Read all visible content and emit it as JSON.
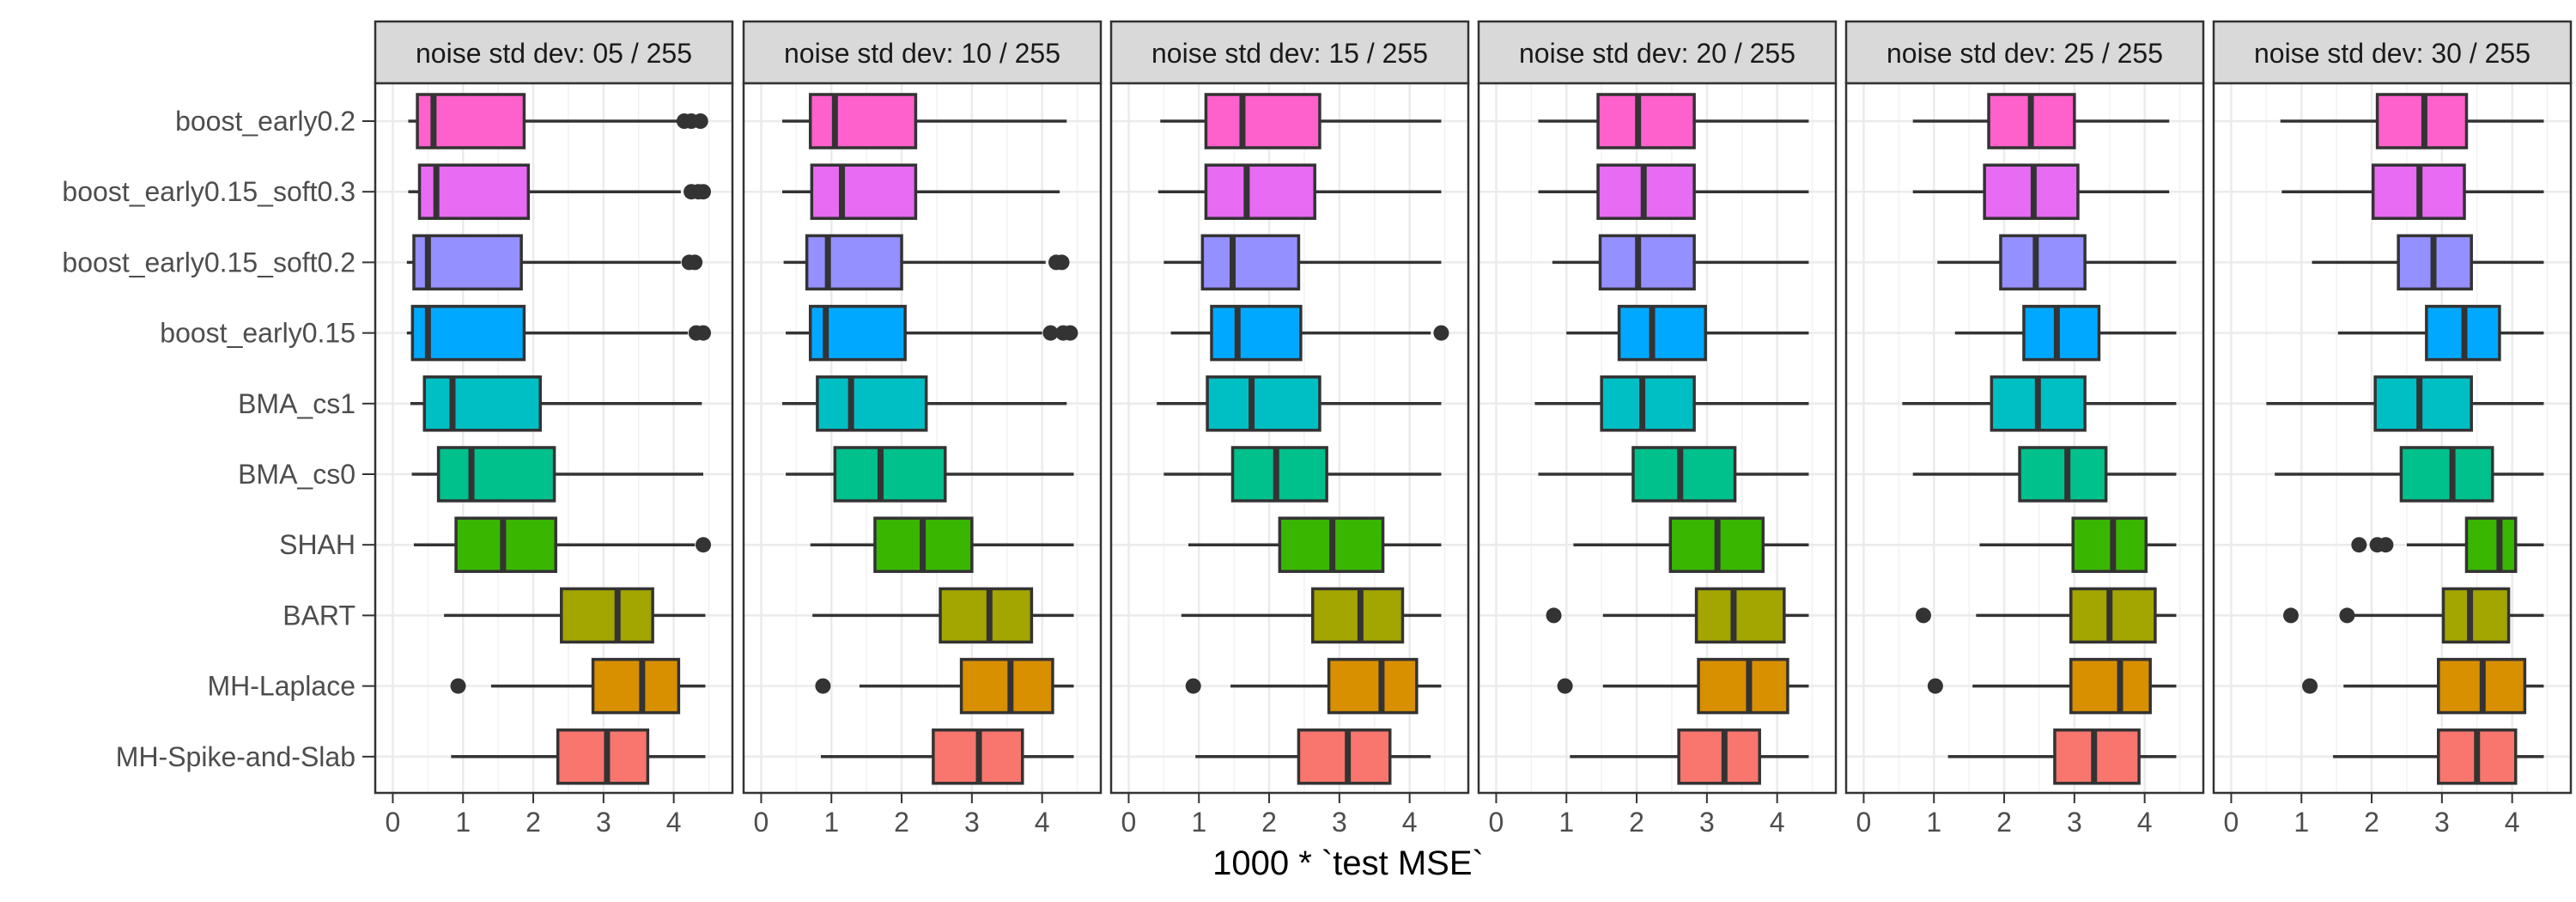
{
  "chart_data": {
    "type": "boxplot",
    "xlabel": "1000 * `test MSE`",
    "ylabel": "",
    "xlim": [
      -0.25,
      4.6
    ],
    "xticks": [
      0,
      1,
      2,
      3,
      4
    ],
    "categories": [
      "boost_early0.2",
      "boost_early0.15_soft0.3",
      "boost_early0.15_soft0.2",
      "boost_early0.15",
      "BMA_cs1",
      "BMA_cs0",
      "SHAH",
      "BART",
      "MH-Laplace",
      "MH-Spike-and-Slab"
    ],
    "colors": [
      "#ff61cc",
      "#e76bf3",
      "#9590ff",
      "#00a9ff",
      "#00bfc4",
      "#00c08b",
      "#39b600",
      "#a3a500",
      "#d89000",
      "#f8766d"
    ],
    "panels": [
      {
        "label": "noise std dev: 05 / 255",
        "boxes": [
          {
            "whisker_low": 0.22,
            "q1": 0.35,
            "median": 0.58,
            "q3": 1.87,
            "whisker_high": 4.05,
            "outliers": [
              4.15,
              4.25,
              4.38
            ]
          },
          {
            "whisker_low": 0.22,
            "q1": 0.38,
            "median": 0.62,
            "q3": 1.93,
            "whisker_high": 4.1,
            "outliers": [
              4.25,
              4.35,
              4.42
            ]
          },
          {
            "whisker_low": 0.2,
            "q1": 0.3,
            "median": 0.5,
            "q3": 1.83,
            "whisker_high": 4.1,
            "outliers": [
              4.22,
              4.3
            ]
          },
          {
            "whisker_low": 0.2,
            "q1": 0.28,
            "median": 0.5,
            "q3": 1.87,
            "whisker_high": 4.2,
            "outliers": [
              4.32,
              4.42
            ]
          },
          {
            "whisker_low": 0.25,
            "q1": 0.45,
            "median": 0.85,
            "q3": 2.1,
            "whisker_high": 4.4,
            "outliers": []
          },
          {
            "whisker_low": 0.27,
            "q1": 0.65,
            "median": 1.12,
            "q3": 2.3,
            "whisker_high": 4.42,
            "outliers": []
          },
          {
            "whisker_low": 0.3,
            "q1": 0.9,
            "median": 1.57,
            "q3": 2.32,
            "whisker_high": 4.3,
            "outliers": [
              4.42
            ]
          },
          {
            "whisker_low": 0.73,
            "q1": 2.4,
            "median": 3.2,
            "q3": 3.7,
            "whisker_high": 4.45,
            "outliers": []
          },
          {
            "whisker_low": 1.4,
            "q1": 2.85,
            "median": 3.55,
            "q3": 4.07,
            "whisker_high": 4.45,
            "outliers": [
              0.93
            ]
          },
          {
            "whisker_low": 0.83,
            "q1": 2.35,
            "median": 3.05,
            "q3": 3.63,
            "whisker_high": 4.45,
            "outliers": []
          }
        ]
      },
      {
        "label": "noise std dev: 10 / 255",
        "boxes": [
          {
            "whisker_low": 0.3,
            "q1": 0.7,
            "median": 1.05,
            "q3": 2.2,
            "whisker_high": 4.35,
            "outliers": []
          },
          {
            "whisker_low": 0.3,
            "q1": 0.72,
            "median": 1.15,
            "q3": 2.2,
            "whisker_high": 4.25,
            "outliers": []
          },
          {
            "whisker_low": 0.32,
            "q1": 0.65,
            "median": 0.95,
            "q3": 2.0,
            "whisker_high": 4.05,
            "outliers": [
              4.2,
              4.28
            ]
          },
          {
            "whisker_low": 0.35,
            "q1": 0.7,
            "median": 0.92,
            "q3": 2.05,
            "whisker_high": 4.0,
            "outliers": [
              4.12,
              4.3,
              4.4
            ]
          },
          {
            "whisker_low": 0.3,
            "q1": 0.8,
            "median": 1.28,
            "q3": 2.35,
            "whisker_high": 4.35,
            "outliers": []
          },
          {
            "whisker_low": 0.35,
            "q1": 1.05,
            "median": 1.7,
            "q3": 2.62,
            "whisker_high": 4.45,
            "outliers": []
          },
          {
            "whisker_low": 0.7,
            "q1": 1.62,
            "median": 2.3,
            "q3": 3.0,
            "whisker_high": 4.45,
            "outliers": []
          },
          {
            "whisker_low": 0.73,
            "q1": 2.55,
            "median": 3.25,
            "q3": 3.85,
            "whisker_high": 4.45,
            "outliers": []
          },
          {
            "whisker_low": 1.4,
            "q1": 2.85,
            "median": 3.55,
            "q3": 4.15,
            "whisker_high": 4.45,
            "outliers": [
              0.88
            ]
          },
          {
            "whisker_low": 0.85,
            "q1": 2.45,
            "median": 3.1,
            "q3": 3.72,
            "whisker_high": 4.45,
            "outliers": []
          }
        ]
      },
      {
        "label": "noise std dev: 15 / 255",
        "boxes": [
          {
            "whisker_low": 0.45,
            "q1": 1.1,
            "median": 1.62,
            "q3": 2.72,
            "whisker_high": 4.45,
            "outliers": []
          },
          {
            "whisker_low": 0.42,
            "q1": 1.1,
            "median": 1.68,
            "q3": 2.65,
            "whisker_high": 4.45,
            "outliers": []
          },
          {
            "whisker_low": 0.5,
            "q1": 1.05,
            "median": 1.48,
            "q3": 2.42,
            "whisker_high": 4.45,
            "outliers": []
          },
          {
            "whisker_low": 0.6,
            "q1": 1.18,
            "median": 1.55,
            "q3": 2.45,
            "whisker_high": 4.3,
            "outliers": [
              4.45
            ]
          },
          {
            "whisker_low": 0.4,
            "q1": 1.12,
            "median": 1.75,
            "q3": 2.72,
            "whisker_high": 4.45,
            "outliers": []
          },
          {
            "whisker_low": 0.5,
            "q1": 1.48,
            "median": 2.1,
            "q3": 2.82,
            "whisker_high": 4.45,
            "outliers": []
          },
          {
            "whisker_low": 0.85,
            "q1": 2.15,
            "median": 2.9,
            "q3": 3.62,
            "whisker_high": 4.45,
            "outliers": []
          },
          {
            "whisker_low": 0.75,
            "q1": 2.62,
            "median": 3.3,
            "q3": 3.9,
            "whisker_high": 4.45,
            "outliers": []
          },
          {
            "whisker_low": 1.45,
            "q1": 2.85,
            "median": 3.6,
            "q3": 4.1,
            "whisker_high": 4.45,
            "outliers": [
              0.92
            ]
          },
          {
            "whisker_low": 0.95,
            "q1": 2.42,
            "median": 3.12,
            "q3": 3.72,
            "whisker_high": 4.3,
            "outliers": []
          }
        ]
      },
      {
        "label": "noise std dev: 20 / 255",
        "boxes": [
          {
            "whisker_low": 0.6,
            "q1": 1.45,
            "median": 2.02,
            "q3": 2.82,
            "whisker_high": 4.45,
            "outliers": []
          },
          {
            "whisker_low": 0.6,
            "q1": 1.45,
            "median": 2.1,
            "q3": 2.82,
            "whisker_high": 4.45,
            "outliers": []
          },
          {
            "whisker_low": 0.8,
            "q1": 1.48,
            "median": 2.02,
            "q3": 2.82,
            "whisker_high": 4.45,
            "outliers": []
          },
          {
            "whisker_low": 1.0,
            "q1": 1.75,
            "median": 2.22,
            "q3": 2.98,
            "whisker_high": 4.45,
            "outliers": []
          },
          {
            "whisker_low": 0.55,
            "q1": 1.5,
            "median": 2.08,
            "q3": 2.82,
            "whisker_high": 4.45,
            "outliers": []
          },
          {
            "whisker_low": 0.6,
            "q1": 1.95,
            "median": 2.62,
            "q3": 3.4,
            "whisker_high": 4.45,
            "outliers": []
          },
          {
            "whisker_low": 1.1,
            "q1": 2.48,
            "median": 3.15,
            "q3": 3.8,
            "whisker_high": 4.45,
            "outliers": []
          },
          {
            "whisker_low": 1.52,
            "q1": 2.85,
            "median": 3.38,
            "q3": 4.1,
            "whisker_high": 4.45,
            "outliers": [
              0.82
            ]
          },
          {
            "whisker_low": 1.52,
            "q1": 2.88,
            "median": 3.6,
            "q3": 4.15,
            "whisker_high": 4.45,
            "outliers": [
              0.98
            ]
          },
          {
            "whisker_low": 1.05,
            "q1": 2.6,
            "median": 3.25,
            "q3": 3.75,
            "whisker_high": 4.45,
            "outliers": []
          }
        ]
      },
      {
        "label": "noise std dev: 25 / 255",
        "boxes": [
          {
            "whisker_low": 0.7,
            "q1": 1.78,
            "median": 2.38,
            "q3": 3.0,
            "whisker_high": 4.35,
            "outliers": []
          },
          {
            "whisker_low": 0.7,
            "q1": 1.72,
            "median": 2.42,
            "q3": 3.05,
            "whisker_high": 4.35,
            "outliers": []
          },
          {
            "whisker_low": 1.05,
            "q1": 1.95,
            "median": 2.45,
            "q3": 3.15,
            "whisker_high": 4.45,
            "outliers": []
          },
          {
            "whisker_low": 1.3,
            "q1": 2.28,
            "median": 2.75,
            "q3": 3.35,
            "whisker_high": 4.45,
            "outliers": []
          },
          {
            "whisker_low": 0.55,
            "q1": 1.82,
            "median": 2.48,
            "q3": 3.15,
            "whisker_high": 4.45,
            "outliers": []
          },
          {
            "whisker_low": 0.7,
            "q1": 2.22,
            "median": 2.9,
            "q3": 3.45,
            "whisker_high": 4.45,
            "outliers": []
          },
          {
            "whisker_low": 1.65,
            "q1": 2.98,
            "median": 3.55,
            "q3": 4.02,
            "whisker_high": 4.45,
            "outliers": []
          },
          {
            "whisker_low": 1.6,
            "q1": 2.95,
            "median": 3.5,
            "q3": 4.15,
            "whisker_high": 4.45,
            "outliers": [
              0.85
            ]
          },
          {
            "whisker_low": 1.55,
            "q1": 2.95,
            "median": 3.65,
            "q3": 4.08,
            "whisker_high": 4.45,
            "outliers": [
              1.02
            ]
          },
          {
            "whisker_low": 1.2,
            "q1": 2.72,
            "median": 3.28,
            "q3": 3.92,
            "whisker_high": 4.45,
            "outliers": []
          }
        ]
      },
      {
        "label": "noise std dev: 30 / 255",
        "boxes": [
          {
            "whisker_low": 0.7,
            "q1": 2.08,
            "median": 2.75,
            "q3": 3.35,
            "whisker_high": 4.45,
            "outliers": []
          },
          {
            "whisker_low": 0.72,
            "q1": 2.02,
            "median": 2.68,
            "q3": 3.32,
            "whisker_high": 4.45,
            "outliers": []
          },
          {
            "whisker_low": 1.15,
            "q1": 2.38,
            "median": 2.88,
            "q3": 3.42,
            "whisker_high": 4.45,
            "outliers": []
          },
          {
            "whisker_low": 1.52,
            "q1": 2.78,
            "median": 3.32,
            "q3": 3.82,
            "whisker_high": 4.45,
            "outliers": []
          },
          {
            "whisker_low": 0.5,
            "q1": 2.05,
            "median": 2.68,
            "q3": 3.42,
            "whisker_high": 4.45,
            "outliers": []
          },
          {
            "whisker_low": 0.62,
            "q1": 2.42,
            "median": 3.15,
            "q3": 3.72,
            "whisker_high": 4.45,
            "outliers": []
          },
          {
            "whisker_low": 2.5,
            "q1": 3.35,
            "median": 3.82,
            "q3": 4.05,
            "whisker_high": 4.45,
            "outliers": [
              1.82,
              2.08,
              2.2
            ]
          },
          {
            "whisker_low": 1.75,
            "q1": 3.02,
            "median": 3.4,
            "q3": 3.95,
            "whisker_high": 4.45,
            "outliers": [
              0.85,
              1.65
            ]
          },
          {
            "whisker_low": 1.6,
            "q1": 2.95,
            "median": 3.58,
            "q3": 4.18,
            "whisker_high": 4.45,
            "outliers": [
              1.12
            ]
          },
          {
            "whisker_low": 1.45,
            "q1": 2.95,
            "median": 3.5,
            "q3": 4.05,
            "whisker_high": 4.45,
            "outliers": []
          }
        ]
      }
    ]
  }
}
